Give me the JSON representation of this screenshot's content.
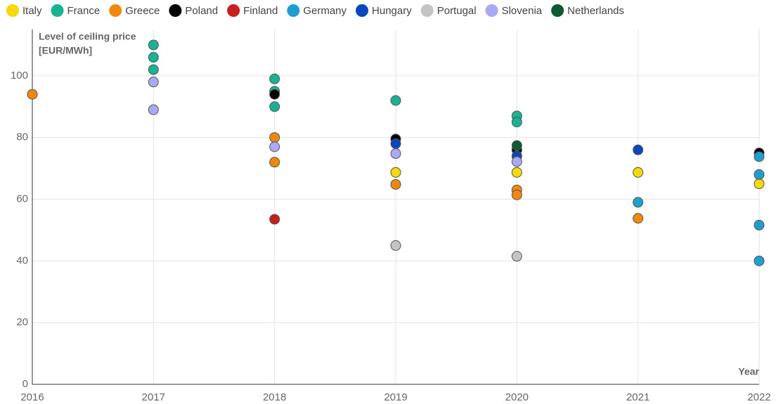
{
  "chart_data": {
    "type": "scatter",
    "ylabel": [
      "Level of ceiling price",
      "[EUR/MWh]"
    ],
    "xlabel": "Year",
    "xlim": [
      2016,
      2022
    ],
    "xticks": [
      2016,
      2017,
      2018,
      2019,
      2020,
      2021,
      2022
    ],
    "ylim": [
      0,
      115
    ],
    "yticks": [
      0,
      20,
      40,
      60,
      80,
      100
    ],
    "grid": true,
    "legend": "top",
    "series": [
      {
        "name": "Italy",
        "color": "#f5d90a",
        "x": [
          2019,
          2020,
          2021,
          2022
        ],
        "values": [
          68.7,
          68.7,
          68.7,
          65
        ]
      },
      {
        "name": "France",
        "color": "#19b394",
        "x": [
          2017,
          2017,
          2017,
          2018,
          2018,
          2018,
          2019,
          2020,
          2020
        ],
        "values": [
          110,
          106,
          102,
          99,
          95,
          90,
          92,
          87,
          85
        ]
      },
      {
        "name": "Greece",
        "color": "#f0880f",
        "x": [
          2016,
          2018,
          2018,
          2019,
          2020,
          2020,
          2021
        ],
        "values": [
          94,
          80,
          72,
          64.8,
          63,
          61.4,
          53.8
        ]
      },
      {
        "name": "Poland",
        "color": "#000000",
        "x": [
          2018,
          2019,
          2020,
          2022
        ],
        "values": [
          94,
          79.5,
          76,
          75
        ]
      },
      {
        "name": "Finland",
        "color": "#c91f1f",
        "x": [
          2018
        ],
        "values": [
          53.5
        ]
      },
      {
        "name": "Germany",
        "color": "#1e9fd0",
        "x": [
          2021,
          2022,
          2022,
          2022,
          2022
        ],
        "values": [
          59,
          73.8,
          68,
          51.6,
          40
        ]
      },
      {
        "name": "Hungary",
        "color": "#0a47bf",
        "x": [
          2019,
          2020,
          2021
        ],
        "values": [
          78,
          74,
          76
        ]
      },
      {
        "name": "Portugal",
        "color": "#c4c4c4",
        "x": [
          2019,
          2020
        ],
        "values": [
          45,
          41.5
        ]
      },
      {
        "name": "Slovenia",
        "color": "#a9a9f5",
        "x": [
          2017,
          2017,
          2018,
          2019,
          2020
        ],
        "values": [
          98,
          89,
          77,
          74.8,
          72.2
        ]
      },
      {
        "name": "Netherlands",
        "color": "#0b5a34",
        "x": [
          2020
        ],
        "values": [
          77.4
        ]
      }
    ]
  }
}
